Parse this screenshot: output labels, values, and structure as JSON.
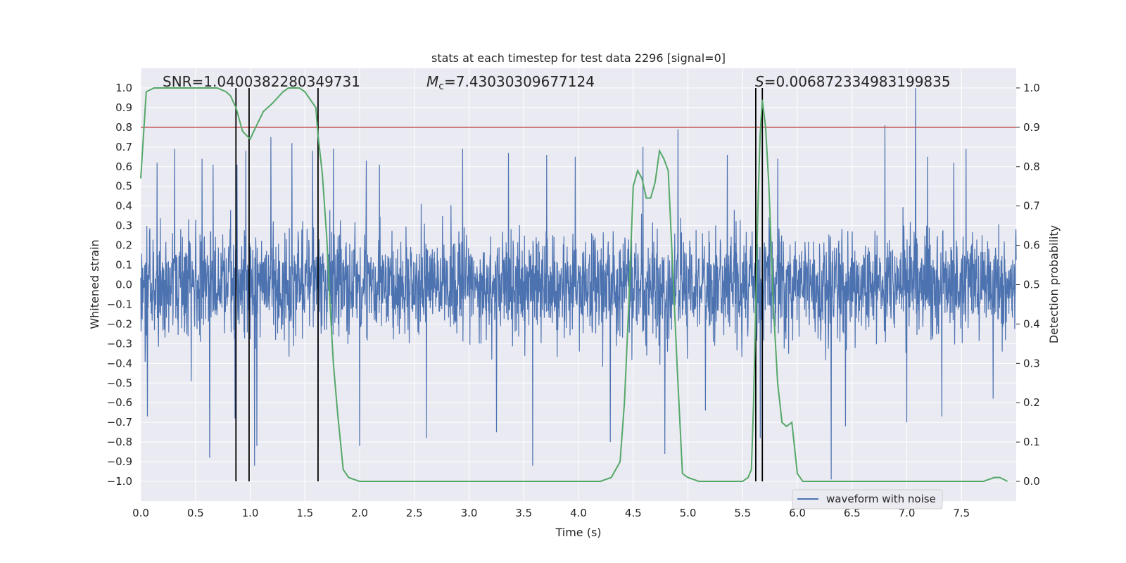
{
  "chart_data": {
    "type": "line",
    "title": "stats at each timestep for test data 2296 [signal=0]",
    "xlabel": "Time (s)",
    "ylabel": "Whitened strain",
    "ylabel_right": "Detection probability",
    "xlim": [
      0.0,
      8.0
    ],
    "ylim": [
      -1.1,
      1.1
    ],
    "ylim_right": [
      -0.05,
      1.05
    ],
    "grid": true,
    "x_ticks": [
      "0.0",
      "0.5",
      "1.0",
      "1.5",
      "2.0",
      "2.5",
      "3.0",
      "3.5",
      "4.0",
      "4.5",
      "5.0",
      "5.5",
      "6.0",
      "6.5",
      "7.0",
      "7.5"
    ],
    "y_ticks_left": [
      "1.0",
      "0.9",
      "0.8",
      "0.7",
      "0.6",
      "0.5",
      "0.4",
      "0.3",
      "0.2",
      "0.1",
      "0.0",
      "−0.1",
      "−0.2",
      "−0.3",
      "−0.4",
      "−0.5",
      "−0.6",
      "−0.7",
      "−0.8",
      "−0.9",
      "−1.0"
    ],
    "y_ticks_right": [
      "1.0",
      "0.9",
      "0.8",
      "0.7",
      "0.6",
      "0.5",
      "0.4",
      "0.3",
      "0.2",
      "0.1",
      "0.0"
    ],
    "annotations": {
      "snr": "SNR=1.0400382280349731",
      "mc_symbol": "M",
      "mc_sub": "c",
      "mc_value": "=7.43030309677124",
      "s_symbol": "S",
      "s_value": "=0.006872334983199835"
    },
    "legend": {
      "label": "waveform with noise",
      "placement": "lower-right"
    },
    "threshold": {
      "value": 0.9,
      "axis": "right",
      "color": "#c44e52"
    },
    "vertical_lines_x": [
      0.87,
      0.99,
      1.62,
      5.62,
      5.68
    ],
    "waveform": {
      "name": "waveform with noise",
      "color": "#4c72b0",
      "typical_amplitude": 0.4,
      "seed": 2296,
      "spikes": [
        [
          0.06,
          -0.67
        ],
        [
          0.15,
          0.62
        ],
        [
          0.31,
          0.69
        ],
        [
          0.46,
          -0.49
        ],
        [
          0.56,
          0.64
        ],
        [
          0.63,
          -0.88
        ],
        [
          0.66,
          0.61
        ],
        [
          0.86,
          -0.68
        ],
        [
          0.88,
          0.61
        ],
        [
          0.96,
          0.68
        ],
        [
          1.04,
          -0.92
        ],
        [
          1.06,
          -0.82
        ],
        [
          1.19,
          0.75
        ],
        [
          1.38,
          0.72
        ],
        [
          1.57,
          0.68
        ],
        [
          1.62,
          -0.84
        ],
        [
          1.76,
          0.69
        ],
        [
          2.0,
          -0.82
        ],
        [
          2.06,
          0.63
        ],
        [
          2.18,
          0.61
        ],
        [
          2.61,
          -0.78
        ],
        [
          2.94,
          0.69
        ],
        [
          3.25,
          -0.75
        ],
        [
          3.36,
          0.67
        ],
        [
          3.58,
          -0.92
        ],
        [
          3.71,
          0.66
        ],
        [
          3.97,
          0.65
        ],
        [
          4.29,
          -0.8
        ],
        [
          4.59,
          0.7
        ],
        [
          4.79,
          -0.86
        ],
        [
          4.91,
          0.79
        ],
        [
          5.16,
          -0.64
        ],
        [
          5.36,
          0.66
        ],
        [
          5.66,
          -0.78
        ],
        [
          5.82,
          0.64
        ],
        [
          6.31,
          -0.99
        ],
        [
          6.44,
          -0.72
        ],
        [
          6.8,
          0.81
        ],
        [
          7.0,
          -0.7
        ],
        [
          7.08,
          1.0
        ],
        [
          7.19,
          0.65
        ],
        [
          7.32,
          -0.67
        ],
        [
          7.43,
          0.62
        ],
        [
          7.54,
          0.69
        ],
        [
          7.79,
          -0.58
        ]
      ]
    },
    "detection_probability": {
      "color": "#55a868",
      "x": [
        0.0,
        0.05,
        0.12,
        0.2,
        0.3,
        0.4,
        0.5,
        0.6,
        0.7,
        0.78,
        0.82,
        0.87,
        0.93,
        1.0,
        1.05,
        1.12,
        1.2,
        1.3,
        1.35,
        1.45,
        1.5,
        1.55,
        1.6,
        1.62,
        1.66,
        1.7,
        1.73,
        1.76,
        1.8,
        1.85,
        1.9,
        2.0,
        2.1,
        2.15,
        2.2,
        2.3,
        2.4,
        2.5,
        2.6,
        2.7,
        2.8,
        2.9,
        3.0,
        3.2,
        3.4,
        3.5,
        3.6,
        3.65,
        3.7,
        3.8,
        3.9,
        4.0,
        4.1,
        4.2,
        4.3,
        4.38,
        4.42,
        4.46,
        4.5,
        4.54,
        4.58,
        4.62,
        4.66,
        4.7,
        4.74,
        4.78,
        4.82,
        4.86,
        4.9,
        4.95,
        5.0,
        5.1,
        5.2,
        5.3,
        5.4,
        5.5,
        5.55,
        5.58,
        5.6,
        5.62,
        5.64,
        5.66,
        5.68,
        5.71,
        5.74,
        5.78,
        5.82,
        5.86,
        5.9,
        5.95,
        6.0,
        6.05,
        6.1,
        6.2,
        6.3,
        6.4,
        6.5,
        6.6,
        6.8,
        7.0,
        7.2,
        7.4,
        7.6,
        7.7,
        7.8,
        7.85,
        7.92
      ],
      "y": [
        0.77,
        0.99,
        1.0,
        1.0,
        1.0,
        1.0,
        1.0,
        1.0,
        1.0,
        0.99,
        0.98,
        0.95,
        0.89,
        0.87,
        0.9,
        0.94,
        0.96,
        0.99,
        1.0,
        1.0,
        0.99,
        0.97,
        0.95,
        0.88,
        0.78,
        0.62,
        0.45,
        0.3,
        0.17,
        0.03,
        0.01,
        0.0,
        0.0,
        0.0,
        0.0,
        0.0,
        0.0,
        0.0,
        0.0,
        0.0,
        0.0,
        0.0,
        0.0,
        0.0,
        0.0,
        0.0,
        0.0,
        0.0,
        0.0,
        0.0,
        0.0,
        0.0,
        0.0,
        0.0,
        0.01,
        0.05,
        0.2,
        0.45,
        0.75,
        0.79,
        0.77,
        0.72,
        0.72,
        0.76,
        0.84,
        0.82,
        0.79,
        0.55,
        0.3,
        0.02,
        0.01,
        0.0,
        0.0,
        0.0,
        0.0,
        0.0,
        0.01,
        0.03,
        0.2,
        0.45,
        0.7,
        0.88,
        0.97,
        0.9,
        0.75,
        0.45,
        0.25,
        0.15,
        0.14,
        0.15,
        0.02,
        0.0,
        0.0,
        0.0,
        0.0,
        0.0,
        0.0,
        0.0,
        0.0,
        0.0,
        0.0,
        0.0,
        0.0,
        0.0,
        0.01,
        0.01,
        0.0
      ]
    }
  }
}
